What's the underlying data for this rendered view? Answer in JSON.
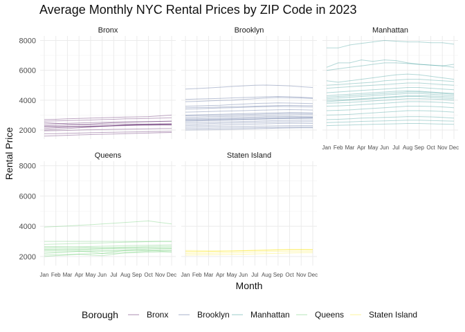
{
  "chart_data": {
    "type": "line",
    "title": "Average Monthly NYC Rental Prices by ZIP Code in 2023",
    "xlabel": "Month",
    "ylabel": "Rental Price",
    "months": [
      "Jan",
      "Feb",
      "Mar",
      "Apr",
      "May",
      "Jun",
      "Jul",
      "Aug",
      "Sep",
      "Oct",
      "Nov",
      "Dec"
    ],
    "y_ticks": [
      2000,
      4000,
      6000,
      8000
    ],
    "ylim": [
      1400,
      8300
    ],
    "grid": true,
    "legend": {
      "title": "Borough",
      "position": "bottom",
      "entries": [
        {
          "name": "Bronx",
          "color": "#440154"
        },
        {
          "name": "Brooklyn",
          "color": "#3b528b"
        },
        {
          "name": "Manhattan",
          "color": "#21908c"
        },
        {
          "name": "Queens",
          "color": "#5dc863"
        },
        {
          "name": "Staten Island",
          "color": "#fde725"
        }
      ]
    },
    "panels": [
      {
        "borough": "Bronx",
        "color": "#440154",
        "series": [
          [
            2300,
            2310,
            2330,
            2350,
            2360,
            2380,
            2400,
            2410,
            2400,
            2390,
            2380,
            2370
          ],
          [
            2600,
            2620,
            2630,
            2650,
            2670,
            2700,
            2720,
            2750,
            2760,
            2780,
            2800,
            2820
          ],
          [
            1950,
            1960,
            1980,
            2000,
            2020,
            2030,
            2050,
            2060,
            2070,
            2080,
            2100,
            2110
          ],
          [
            2200,
            2210,
            2220,
            2240,
            2260,
            2280,
            2300,
            2320,
            2330,
            2340,
            2350,
            2360
          ],
          [
            2500,
            2450,
            2400,
            2380,
            2400,
            2450,
            2500,
            2520,
            2540,
            2560,
            2580,
            2600
          ],
          [
            2100,
            2150,
            2200,
            2220,
            2240,
            2260,
            2280,
            2300,
            2320,
            2330,
            2340,
            2340
          ],
          [
            1750,
            1760,
            1780,
            1800,
            1820,
            1840,
            1850,
            1870,
            1880,
            1890,
            1900,
            1910
          ],
          [
            2400,
            2420,
            2450,
            2480,
            2500,
            2520,
            2530,
            2550,
            2560,
            2570,
            2580,
            2590
          ],
          [
            2000,
            2050,
            2100,
            2150,
            2200,
            2250,
            2300,
            2350,
            2380,
            2400,
            2420,
            2430
          ],
          [
            2700,
            2720,
            2750,
            2780,
            2800,
            2820,
            2850,
            2870,
            2880,
            2900,
            2950,
            3000
          ],
          [
            1600,
            1620,
            1650,
            1680,
            1700,
            1720,
            1740,
            1760,
            1780,
            1800,
            1820,
            1840
          ],
          [
            2250,
            2240,
            2230,
            2220,
            2230,
            2260,
            2290,
            2320,
            2350,
            2370,
            2390,
            2400
          ]
        ]
      },
      {
        "borough": "Brooklyn",
        "color": "#3b528b",
        "series": [
          [
            4750,
            4780,
            4820,
            4870,
            4920,
            4960,
            5000,
            5010,
            4990,
            4960,
            4900,
            4850
          ],
          [
            4050,
            4080,
            4100,
            4120,
            4150,
            4180,
            4200,
            4230,
            4250,
            4230,
            4200,
            4150
          ],
          [
            3900,
            3920,
            3950,
            3980,
            4000,
            4050,
            4100,
            4150,
            4180,
            4160,
            4140,
            4120
          ],
          [
            3600,
            3620,
            3640,
            3660,
            3700,
            3740,
            3780,
            3800,
            3820,
            3810,
            3790,
            3770
          ],
          [
            3400,
            3420,
            3450,
            3480,
            3500,
            3520,
            3550,
            3570,
            3580,
            3570,
            3560,
            3550
          ],
          [
            3200,
            3220,
            3240,
            3260,
            3280,
            3300,
            3320,
            3340,
            3360,
            3370,
            3360,
            3340
          ],
          [
            3000,
            3020,
            3040,
            3060,
            3080,
            3100,
            3120,
            3140,
            3160,
            3180,
            3170,
            3160
          ],
          [
            2850,
            2860,
            2880,
            2900,
            2920,
            2940,
            2960,
            2980,
            3000,
            3010,
            3020,
            3020
          ],
          [
            2700,
            2710,
            2720,
            2740,
            2760,
            2780,
            2800,
            2820,
            2840,
            2850,
            2860,
            2860
          ],
          [
            2600,
            2620,
            2640,
            2660,
            2680,
            2700,
            2720,
            2740,
            2760,
            2770,
            2780,
            2790
          ],
          [
            2500,
            2510,
            2520,
            2540,
            2560,
            2580,
            2600,
            2620,
            2640,
            2650,
            2660,
            2660
          ],
          [
            2400,
            2410,
            2430,
            2450,
            2470,
            2490,
            2510,
            2520,
            2540,
            2550,
            2560,
            2560
          ],
          [
            2300,
            2310,
            2320,
            2340,
            2360,
            2380,
            2400,
            2420,
            2440,
            2450,
            2450,
            2440
          ],
          [
            2200,
            2210,
            2220,
            2230,
            2240,
            2250,
            2260,
            2270,
            2280,
            2290,
            2300,
            2300
          ],
          [
            2100,
            2110,
            2120,
            2130,
            2140,
            2150,
            2160,
            2170,
            2180,
            2190,
            2200,
            2200
          ],
          [
            2750,
            2760,
            2780,
            2800,
            2830,
            2850,
            2870,
            2890,
            2900,
            2910,
            2900,
            2890
          ],
          [
            3500,
            3510,
            3520,
            3540,
            3560,
            3580,
            3600,
            3620,
            3640,
            3650,
            3640,
            3630
          ],
          [
            2950,
            2960,
            2970,
            2990,
            3010,
            3030,
            3050,
            3070,
            3090,
            3100,
            3100,
            3090
          ],
          [
            2000,
            2010,
            2020,
            2030,
            2050,
            2070,
            2090,
            2110,
            2130,
            2140,
            2150,
            2150
          ],
          [
            2650,
            2650,
            2660,
            2680,
            2700,
            2720,
            2740,
            2760,
            2780,
            2790,
            2800,
            2810
          ]
        ]
      },
      {
        "borough": "Manhattan",
        "color": "#21908c",
        "series": [
          [
            7500,
            7500,
            7700,
            7800,
            7900,
            8000,
            7950,
            7900,
            7900,
            7850,
            7850,
            7750
          ],
          [
            6200,
            6500,
            6500,
            6700,
            6600,
            6700,
            6650,
            6500,
            6400,
            6350,
            6300,
            6200
          ],
          [
            6000,
            6100,
            6200,
            6300,
            6400,
            6500,
            6500,
            6450,
            6400,
            6350,
            6300,
            6400
          ],
          [
            5300,
            5200,
            5300,
            5400,
            5500,
            5600,
            5700,
            5750,
            5700,
            5600,
            5500,
            5400
          ],
          [
            5000,
            5050,
            5100,
            5150,
            5200,
            5300,
            5350,
            5400,
            5400,
            5350,
            5300,
            5250
          ],
          [
            4800,
            4850,
            4900,
            4950,
            5000,
            5050,
            5100,
            5150,
            5150,
            5100,
            5050,
            5000
          ],
          [
            4500,
            4550,
            4600,
            4650,
            4700,
            4750,
            4800,
            4850,
            4850,
            4800,
            4750,
            4700
          ],
          [
            4300,
            4350,
            4400,
            4450,
            4500,
            4550,
            4600,
            4620,
            4600,
            4550,
            4500,
            4450
          ],
          [
            4100,
            4150,
            4200,
            4250,
            4300,
            4350,
            4400,
            4450,
            4450,
            4400,
            4350,
            4300
          ],
          [
            4000,
            4020,
            4050,
            4100,
            4150,
            4200,
            4250,
            4300,
            4300,
            4280,
            4250,
            4200
          ],
          [
            3800,
            3820,
            3850,
            3900,
            3950,
            4000,
            4050,
            4100,
            4100,
            4080,
            4050,
            4000
          ],
          [
            3600,
            3620,
            3650,
            3700,
            3750,
            3800,
            3850,
            3900,
            3900,
            3880,
            3850,
            3800
          ],
          [
            3300,
            3320,
            3350,
            3400,
            3450,
            3500,
            3550,
            3600,
            3600,
            3580,
            3550,
            3500
          ],
          [
            3000,
            3020,
            3050,
            3100,
            3150,
            3200,
            3250,
            3300,
            3300,
            3280,
            3250,
            3200
          ],
          [
            2700,
            2720,
            2750,
            2800,
            2820,
            2850,
            2870,
            2900,
            2900,
            2880,
            2850,
            2800
          ],
          [
            2500,
            2520,
            2550,
            2580,
            2600,
            2620,
            2640,
            2660,
            2660,
            2640,
            2620,
            2600
          ],
          [
            2300,
            2320,
            2340,
            2360,
            2380,
            2400,
            2420,
            2440,
            2440,
            2420,
            2400,
            2380
          ],
          [
            4200,
            4250,
            4300,
            4350,
            4400,
            4450,
            4500,
            4550,
            4550,
            4500,
            4450,
            4400
          ],
          [
            3900,
            3950,
            4000,
            4050,
            4100,
            4150,
            4200,
            4250,
            4250,
            4200,
            4150,
            4100
          ]
        ]
      },
      {
        "borough": "Queens",
        "color": "#5dc863",
        "series": [
          [
            3950,
            3980,
            4020,
            4060,
            4100,
            4150,
            4200,
            4250,
            4300,
            4350,
            4250,
            4150
          ],
          [
            3000,
            3000,
            3000,
            3000,
            3000,
            3000,
            3000,
            3000,
            3000,
            3000,
            3000,
            3000
          ],
          [
            2800,
            2820,
            2840,
            2860,
            2880,
            2900,
            2920,
            2940,
            2960,
            2980,
            3000,
            3000
          ],
          [
            2600,
            2610,
            2620,
            2640,
            2660,
            2680,
            2700,
            2720,
            2740,
            2750,
            2760,
            2770
          ],
          [
            2500,
            2510,
            2520,
            2530,
            2540,
            2550,
            2560,
            2570,
            2580,
            2590,
            2600,
            2600
          ],
          [
            2400,
            2420,
            2440,
            2460,
            2480,
            2500,
            2520,
            2540,
            2560,
            2550,
            2540,
            2530
          ],
          [
            2300,
            2310,
            2320,
            2330,
            2340,
            2350,
            2360,
            2370,
            2380,
            2390,
            2400,
            2400
          ],
          [
            2200,
            2250,
            2300,
            2350,
            2300,
            2200,
            2300,
            2400,
            2450,
            2400,
            2350,
            2300
          ],
          [
            2100,
            2120,
            2140,
            2160,
            2180,
            2200,
            2220,
            2240,
            2260,
            2280,
            2300,
            2300
          ],
          [
            2000,
            2050,
            2100,
            2150,
            2100,
            2050,
            2150,
            2250,
            2300,
            2350,
            2400,
            2420
          ],
          [
            2650,
            2650,
            2640,
            2620,
            2600,
            2580,
            2600,
            2620,
            2640,
            2660,
            2680,
            2680
          ],
          [
            2450,
            2440,
            2430,
            2420,
            2410,
            2400,
            2420,
            2440,
            2460,
            2480,
            2500,
            2520
          ]
        ]
      },
      {
        "borough": "Staten Island",
        "color": "#fde725",
        "series": [
          [
            2200,
            2210,
            2220,
            2240,
            2260,
            2280,
            2300,
            2320,
            2340,
            2350,
            2350,
            2340
          ],
          [
            2300,
            2310,
            2330,
            2350,
            2370,
            2390,
            2410,
            2430,
            2450,
            2460,
            2460,
            2450
          ],
          [
            2400,
            2390,
            2380,
            2370,
            2360,
            2380,
            2400,
            2420,
            2440,
            2450,
            2450,
            2440
          ],
          [
            2100,
            2110,
            2120,
            2130,
            2140,
            2150,
            2170,
            2190,
            2210,
            2230,
            2250,
            2250
          ],
          [
            2350,
            2340,
            2330,
            2340,
            2360,
            2380,
            2400,
            2420,
            2440,
            2460,
            2470,
            2470
          ]
        ]
      }
    ]
  }
}
